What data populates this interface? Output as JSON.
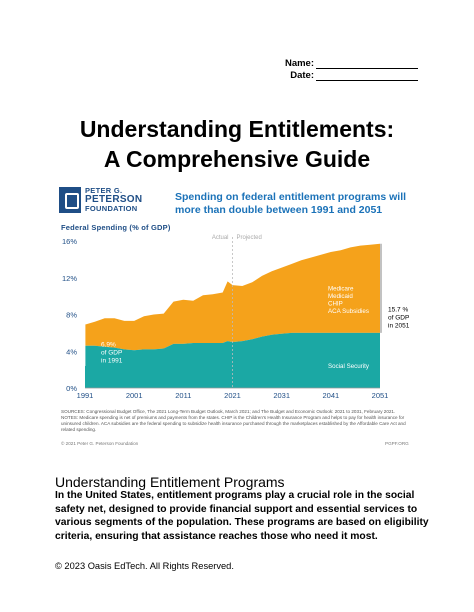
{
  "header": {
    "name_label": "Name:",
    "date_label": "Date:"
  },
  "title": {
    "line1": "Understanding Entitlements:",
    "line2": "A Comprehensive Guide"
  },
  "logo": {
    "line1": "PETER G.",
    "line2": "PETERSON",
    "line3": "FOUNDATION"
  },
  "chart_heading": "Spending on federal entitlement programs will more than double between 1991 and 2051",
  "chart_data": {
    "type": "area",
    "title": "Spending on federal entitlement programs will more than double between 1991 and 2051",
    "ylabel": "Federal Spending (% of GDP)",
    "xlabel": "",
    "x": [
      1991,
      1993,
      1995,
      1997,
      1999,
      2001,
      2003,
      2005,
      2007,
      2009,
      2011,
      2013,
      2015,
      2017,
      2019,
      2020,
      2021,
      2023,
      2025,
      2027,
      2029,
      2031,
      2033,
      2035,
      2037,
      2039,
      2041,
      2043,
      2045,
      2047,
      2049,
      2051
    ],
    "series": [
      {
        "name": "Social Security",
        "values": [
          4.6,
          4.6,
          4.5,
          4.4,
          4.2,
          4.1,
          4.2,
          4.2,
          4.3,
          4.8,
          4.8,
          4.9,
          4.9,
          4.9,
          4.9,
          5.1,
          5.0,
          5.1,
          5.3,
          5.6,
          5.8,
          5.9,
          6.0,
          6.0,
          6.0,
          6.0,
          6.0,
          6.0,
          6.0,
          6.0,
          6.0,
          6.0
        ]
      },
      {
        "name": "Medicare Medicaid CHIP ACA Subsidies",
        "values": [
          2.3,
          2.6,
          3.1,
          3.2,
          3.1,
          3.2,
          3.6,
          3.8,
          3.8,
          4.6,
          4.8,
          4.6,
          5.2,
          5.3,
          5.5,
          6.5,
          6.2,
          6.0,
          6.2,
          6.6,
          6.9,
          7.2,
          7.5,
          7.9,
          8.2,
          8.5,
          8.8,
          9.0,
          9.3,
          9.5,
          9.6,
          9.7
        ]
      }
    ],
    "totals": [
      6.9,
      7.2,
      7.6,
      7.6,
      7.3,
      7.3,
      7.8,
      8.0,
      8.1,
      9.4,
      9.6,
      9.5,
      10.1,
      10.2,
      10.4,
      11.6,
      11.2,
      11.1,
      11.5,
      12.2,
      12.7,
      13.1,
      13.5,
      13.9,
      14.2,
      14.5,
      14.8,
      15.0,
      15.3,
      15.5,
      15.6,
      15.7
    ],
    "ylim": [
      0,
      16
    ],
    "yticks": [
      "0%",
      "4%",
      "8%",
      "12%",
      "16%"
    ],
    "xticks": [
      "1991",
      "2001",
      "2011",
      "2021",
      "2031",
      "2041",
      "2051"
    ],
    "divider_year": 2021,
    "divider_labels": {
      "actual": "Actual",
      "projected": "Projected"
    },
    "annotations": {
      "start": [
        "6.9%",
        "of GDP",
        "in 1991"
      ],
      "end": [
        "15.7 %",
        "of GDP",
        "in 2051"
      ],
      "health_label": [
        "Medicare",
        "Medicaid",
        "CHIP",
        "ACA Subsidies"
      ],
      "ss_label": "Social Security"
    },
    "grid": false,
    "colors": {
      "social_security": "#1ba8a4",
      "health": "#f5a21b",
      "axis_text": "#1f4e86"
    }
  },
  "chart_notes": {
    "sources": "SOURCES: Congressional Budget Office, The 2021 Long-Term Budget Outlook, March 2021; and The Budget and Economic Outlook: 2021 to 2031, February 2021.",
    "notes": "NOTES: Medicare spending is net of premiums and payments from the states. CHIP is the Children's Health Insurance Program and helps to pay for health insurance for uninsured children. ACA subsidies are the federal spending to subsidize health insurance purchased through the marketplaces established by the Affordable Care Act and related spending.",
    "footer": "© 2021 Peter G. Peterson Foundation",
    "footer_right": "PGPF.ORG"
  },
  "section": {
    "title": "Understanding Entitlement Programs",
    "body": "In the United States, entitlement programs play a crucial role in the social safety net, designed to provide financial support and essential services to various segments of the population. These programs are based on eligibility criteria, ensuring that assistance reaches those who need it most."
  },
  "copyright": "© 2023 Oasis EdTech. All Rights Reserved."
}
